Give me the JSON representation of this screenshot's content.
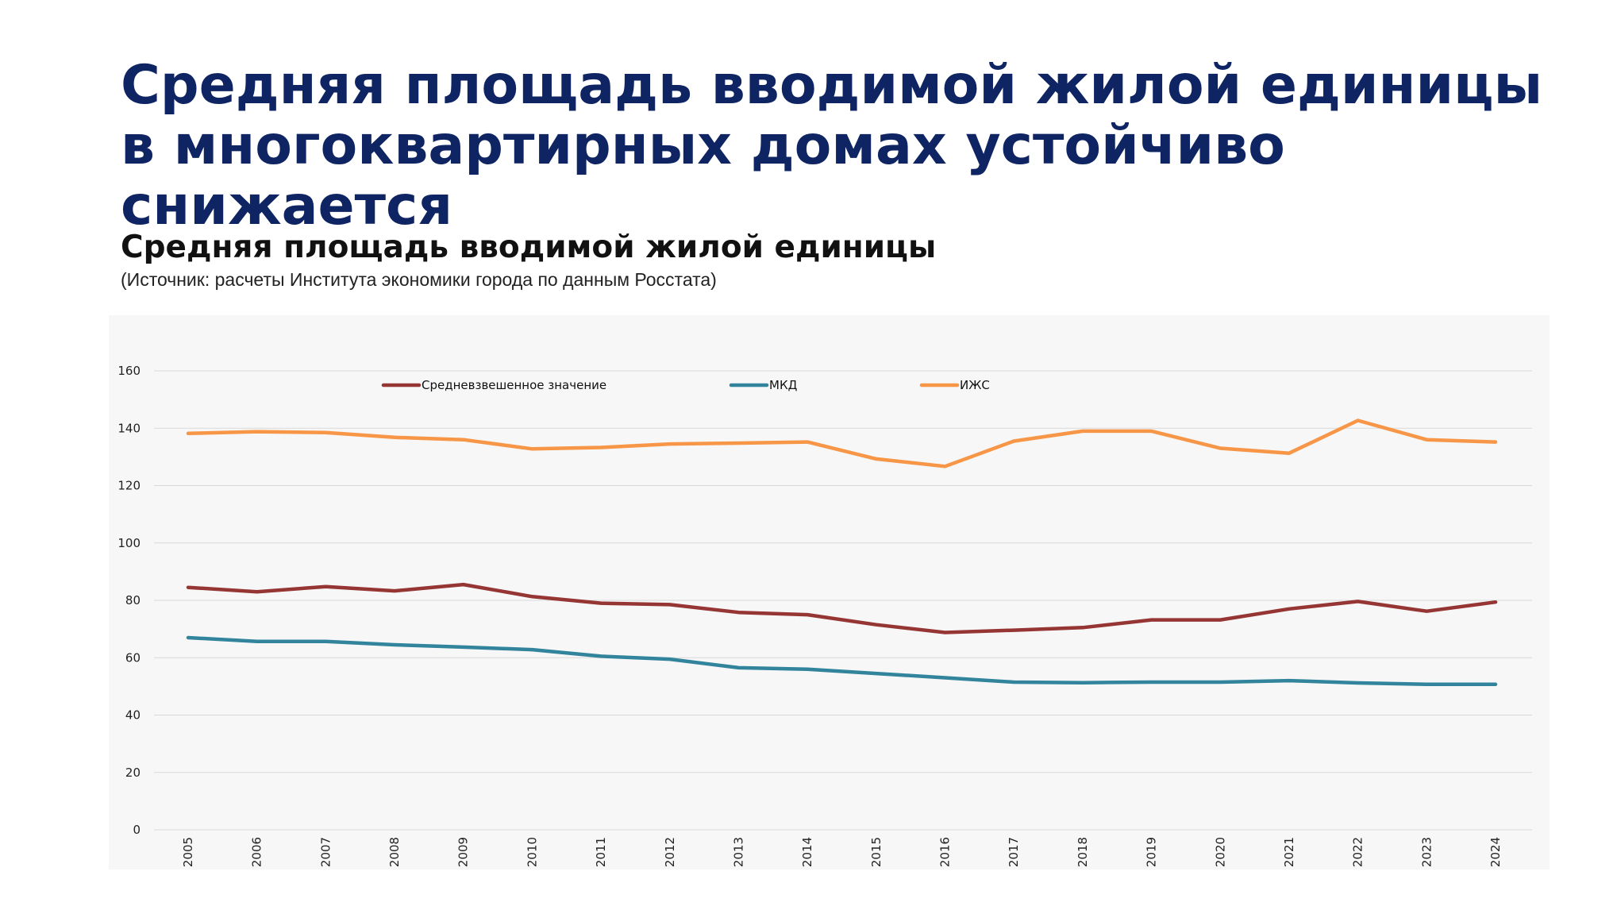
{
  "slide": {
    "title": "Средняя площадь вводимой жилой единицы в многоквартирных домах устойчиво снижается"
  },
  "chart_data": {
    "type": "line",
    "title": "Средняя площадь вводимой жилой единицы",
    "subtitle": "(Источник: расчеты Института экономики города по данным Росстата)",
    "xlabel": "",
    "ylabel": "",
    "x": [
      "2005",
      "2006",
      "2007",
      "2008",
      "2009",
      "2010",
      "2011",
      "2012",
      "2013",
      "2014",
      "2015",
      "2016",
      "2017",
      "2018",
      "2019",
      "2020",
      "2021",
      "2022",
      "2023",
      "2024"
    ],
    "ylim": [
      0,
      160
    ],
    "yticks": [
      0,
      20,
      40,
      60,
      80,
      100,
      120,
      140,
      160
    ],
    "grid": true,
    "legend": "top",
    "series": [
      {
        "name": "Средневзвешенное значение",
        "color": "#963634",
        "values": [
          84.5,
          83.0,
          84.8,
          83.3,
          85.5,
          81.3,
          79.0,
          78.5,
          75.8,
          75.0,
          71.5,
          68.8,
          69.6,
          70.5,
          73.2,
          73.2,
          77.0,
          79.6,
          76.2,
          79.4
        ]
      },
      {
        "name": "МКД",
        "color": "#31849b",
        "values": [
          67.0,
          65.7,
          65.7,
          64.5,
          63.7,
          62.8,
          60.5,
          59.5,
          56.5,
          56.0,
          54.5,
          53.0,
          51.5,
          51.3,
          51.5,
          51.5,
          52.0,
          51.2,
          50.7,
          50.7
        ]
      },
      {
        "name": "ИЖС",
        "color": "#f79646",
        "values": [
          138.2,
          138.8,
          138.5,
          136.8,
          136.0,
          132.8,
          133.3,
          134.5,
          134.8,
          135.2,
          129.3,
          126.7,
          135.5,
          139.0,
          139.0,
          133.0,
          131.3,
          142.7,
          136.0,
          135.2
        ]
      }
    ]
  }
}
